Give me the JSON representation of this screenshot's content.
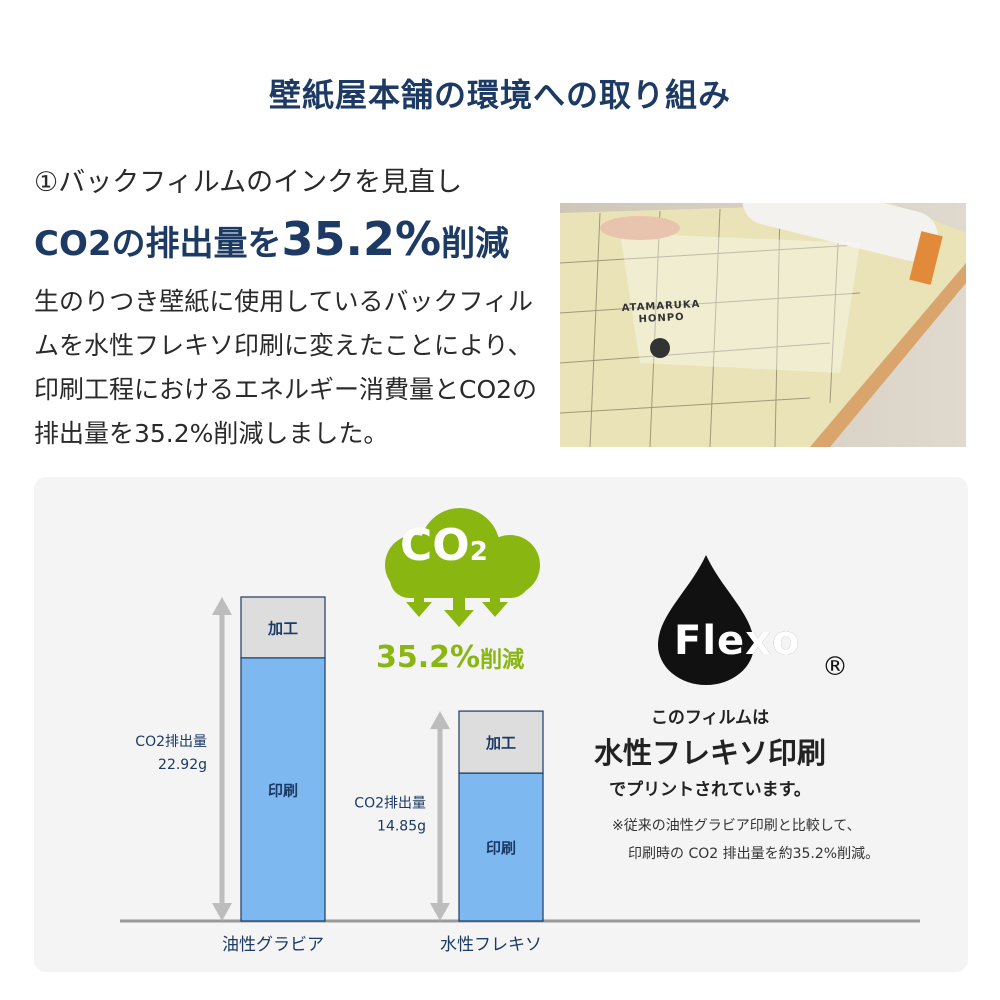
{
  "title": "壁紙屋本舗の環境への取り組み",
  "section": {
    "subtitle": "①バックフィルムのインクを見直し",
    "headline_prefix": "CO2の排出量を",
    "headline_value": "35.2%",
    "headline_suffix": "削減",
    "body": "生のりつき壁紙に使用しているバックフィルムを水性フレキソ印刷に変えたことにより、印刷工程におけるエネルギー消費量とCO2の排出量を35.2%削減しました。"
  },
  "photo": {
    "print_text": "ATAMARUKA\nHONPO"
  },
  "badge": {
    "cloud_text": "CO",
    "cloud_sub": "2",
    "reduction": "35.2%",
    "reduction_suffix": "削減",
    "color": "#8ab611"
  },
  "chart_data": {
    "type": "bar",
    "stacked": true,
    "categories": [
      "油性グラビア",
      "水性フレキソ"
    ],
    "totals": [
      22.92,
      14.85
    ],
    "total_labels": [
      "CO2排出量",
      "CO2排出量"
    ],
    "total_value_labels": [
      "22.92g",
      "14.85g"
    ],
    "unit": "g",
    "series": [
      {
        "name": "印刷",
        "values": [
          18.6,
          10.5
        ],
        "color": "#7db9f0"
      },
      {
        "name": "加工",
        "values": [
          4.3,
          4.4
        ],
        "color": "#dddddd"
      }
    ],
    "grid": false
  },
  "flexo": {
    "logo_text": "Flexo",
    "registered": "®",
    "line1": "このフィルムは",
    "line2": "水性フレキソ印刷",
    "line3": "でプリントされています。",
    "note1": "※従来の油性グラビア印刷と比較して、",
    "note2": "印刷時の CO2 排出量を約35.2%削減。"
  }
}
